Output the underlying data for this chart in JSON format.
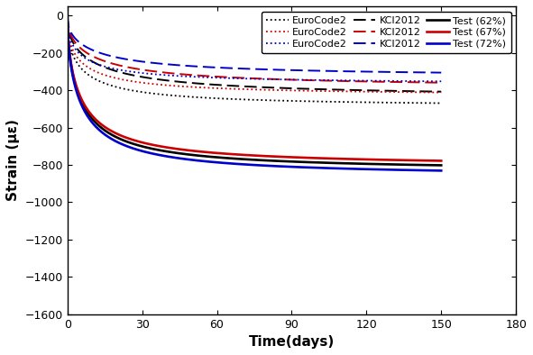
{
  "xlabel": "Time(days)",
  "ylabel": "Strain (με)",
  "xlim": [
    0,
    180
  ],
  "ylim": [
    -1600,
    50
  ],
  "xticks": [
    0,
    30,
    60,
    90,
    120,
    150,
    180
  ],
  "yticks": [
    0,
    -200,
    -400,
    -600,
    -800,
    -1000,
    -1200,
    -1400,
    -1600
  ],
  "colors": {
    "62": "#000000",
    "67": "#cc0000",
    "72": "#0000cc"
  },
  "eurocode_finals": {
    "62": -490,
    "67": -430,
    "72": -368
  },
  "kci_finals": {
    "62": -440,
    "67": -388,
    "72": -330
  },
  "test_finals": {
    "62": -835,
    "67": -810,
    "72": -865
  },
  "eurocode_k": 18,
  "eurocode_p": 0.38,
  "kci_k": 30,
  "kci_p": 0.42,
  "test_k": 12,
  "test_p": 0.52,
  "lw_dotted": 1.3,
  "lw_dashed": 1.4,
  "lw_solid": 1.9
}
